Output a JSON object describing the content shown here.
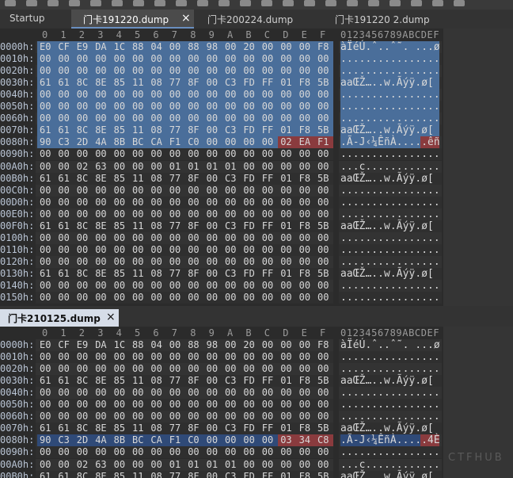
{
  "tabs": [
    "Startup",
    "门卡191220.dump",
    "门卡200224.dump",
    "门卡191220 2.dump"
  ],
  "close": "×",
  "column_header": [
    "0",
    "1",
    "2",
    "3",
    "4",
    "5",
    "6",
    "7",
    "8",
    "9",
    "A",
    "B",
    "C",
    "D",
    "E",
    "F"
  ],
  "ascii_header": "0123456789ABCDEF",
  "top_pane": {
    "rows": [
      {
        "offset": "0000h:",
        "bytes": [
          "E0",
          "CF",
          "E9",
          "DA",
          "1C",
          "88",
          "04",
          "00",
          "88",
          "98",
          "00",
          "20",
          "00",
          "00",
          "00",
          "F8"
        ],
        "ascii": "àÏéÚ.ˆ..ˆ˜. ...ø"
      },
      {
        "offset": "0010h:",
        "bytes": [
          "00",
          "00",
          "00",
          "00",
          "00",
          "00",
          "00",
          "00",
          "00",
          "00",
          "00",
          "00",
          "00",
          "00",
          "00",
          "00"
        ],
        "ascii": "................"
      },
      {
        "offset": "0020h:",
        "bytes": [
          "00",
          "00",
          "00",
          "00",
          "00",
          "00",
          "00",
          "00",
          "00",
          "00",
          "00",
          "00",
          "00",
          "00",
          "00",
          "00"
        ],
        "ascii": "................"
      },
      {
        "offset": "0030h:",
        "bytes": [
          "61",
          "61",
          "8C",
          "8E",
          "85",
          "11",
          "08",
          "77",
          "8F",
          "00",
          "C3",
          "FD",
          "FF",
          "01",
          "F8",
          "5B"
        ],
        "ascii": "aaŒŽ…..w.Ãýÿ.ø["
      },
      {
        "offset": "0040h:",
        "bytes": [
          "00",
          "00",
          "00",
          "00",
          "00",
          "00",
          "00",
          "00",
          "00",
          "00",
          "00",
          "00",
          "00",
          "00",
          "00",
          "00"
        ],
        "ascii": "................"
      },
      {
        "offset": "0050h:",
        "bytes": [
          "00",
          "00",
          "00",
          "00",
          "00",
          "00",
          "00",
          "00",
          "00",
          "00",
          "00",
          "00",
          "00",
          "00",
          "00",
          "00"
        ],
        "ascii": "................"
      },
      {
        "offset": "0060h:",
        "bytes": [
          "00",
          "00",
          "00",
          "00",
          "00",
          "00",
          "00",
          "00",
          "00",
          "00",
          "00",
          "00",
          "00",
          "00",
          "00",
          "00"
        ],
        "ascii": "................"
      },
      {
        "offset": "0070h:",
        "bytes": [
          "61",
          "61",
          "8C",
          "8E",
          "85",
          "11",
          "08",
          "77",
          "8F",
          "00",
          "C3",
          "FD",
          "FF",
          "01",
          "F8",
          "5B"
        ],
        "ascii": "aaŒŽ…..w.Ãýÿ.ø["
      },
      {
        "offset": "0080h:",
        "bytes": [
          "90",
          "C3",
          "2D",
          "4A",
          "8B",
          "BC",
          "CA",
          "F1",
          "C0",
          "00",
          "00",
          "00",
          "00",
          "02",
          "EA",
          "F1"
        ],
        "ascii": ".Ã-J‹¼ÊñÀ.....êñ"
      },
      {
        "offset": "0090h:",
        "bytes": [
          "00",
          "00",
          "00",
          "00",
          "00",
          "00",
          "00",
          "00",
          "00",
          "00",
          "00",
          "00",
          "00",
          "00",
          "00",
          "00"
        ],
        "ascii": "................"
      },
      {
        "offset": "00A0h:",
        "bytes": [
          "00",
          "00",
          "02",
          "63",
          "00",
          "00",
          "00",
          "01",
          "01",
          "01",
          "01",
          "00",
          "00",
          "00",
          "00",
          "00"
        ],
        "ascii": "...c............"
      },
      {
        "offset": "00B0h:",
        "bytes": [
          "61",
          "61",
          "8C",
          "8E",
          "85",
          "11",
          "08",
          "77",
          "8F",
          "00",
          "C3",
          "FD",
          "FF",
          "01",
          "F8",
          "5B"
        ],
        "ascii": "aaŒŽ…..w.Ãýÿ.ø["
      },
      {
        "offset": "00C0h:",
        "bytes": [
          "00",
          "00",
          "00",
          "00",
          "00",
          "00",
          "00",
          "00",
          "00",
          "00",
          "00",
          "00",
          "00",
          "00",
          "00",
          "00"
        ],
        "ascii": "................"
      },
      {
        "offset": "00D0h:",
        "bytes": [
          "00",
          "00",
          "00",
          "00",
          "00",
          "00",
          "00",
          "00",
          "00",
          "00",
          "00",
          "00",
          "00",
          "00",
          "00",
          "00"
        ],
        "ascii": "................"
      },
      {
        "offset": "00E0h:",
        "bytes": [
          "00",
          "00",
          "00",
          "00",
          "00",
          "00",
          "00",
          "00",
          "00",
          "00",
          "00",
          "00",
          "00",
          "00",
          "00",
          "00"
        ],
        "ascii": "................"
      },
      {
        "offset": "00F0h:",
        "bytes": [
          "61",
          "61",
          "8C",
          "8E",
          "85",
          "11",
          "08",
          "77",
          "8F",
          "00",
          "C3",
          "FD",
          "FF",
          "01",
          "F8",
          "5B"
        ],
        "ascii": "aaŒŽ…..w.Ãýÿ.ø["
      },
      {
        "offset": "0100h:",
        "bytes": [
          "00",
          "00",
          "00",
          "00",
          "00",
          "00",
          "00",
          "00",
          "00",
          "00",
          "00",
          "00",
          "00",
          "00",
          "00",
          "00"
        ],
        "ascii": "................"
      },
      {
        "offset": "0110h:",
        "bytes": [
          "00",
          "00",
          "00",
          "00",
          "00",
          "00",
          "00",
          "00",
          "00",
          "00",
          "00",
          "00",
          "00",
          "00",
          "00",
          "00"
        ],
        "ascii": "................"
      },
      {
        "offset": "0120h:",
        "bytes": [
          "00",
          "00",
          "00",
          "00",
          "00",
          "00",
          "00",
          "00",
          "00",
          "00",
          "00",
          "00",
          "00",
          "00",
          "00",
          "00"
        ],
        "ascii": "................"
      },
      {
        "offset": "0130h:",
        "bytes": [
          "61",
          "61",
          "8C",
          "8E",
          "85",
          "11",
          "08",
          "77",
          "8F",
          "00",
          "C3",
          "FD",
          "FF",
          "01",
          "F8",
          "5B"
        ],
        "ascii": "aaŒŽ…..w.Ãýÿ.ø["
      },
      {
        "offset": "0140h:",
        "bytes": [
          "00",
          "00",
          "00",
          "00",
          "00",
          "00",
          "00",
          "00",
          "00",
          "00",
          "00",
          "00",
          "00",
          "00",
          "00",
          "00"
        ],
        "ascii": "................"
      },
      {
        "offset": "0150h:",
        "bytes": [
          "00",
          "00",
          "00",
          "00",
          "00",
          "00",
          "00",
          "00",
          "00",
          "00",
          "00",
          "00",
          "00",
          "00",
          "00",
          "00"
        ],
        "ascii": "................"
      }
    ]
  },
  "bottom_pane": {
    "tab": "门卡210125.dump",
    "rows": [
      {
        "offset": "0000h:",
        "bytes": [
          "E0",
          "CF",
          "E9",
          "DA",
          "1C",
          "88",
          "04",
          "00",
          "88",
          "98",
          "00",
          "20",
          "00",
          "00",
          "00",
          "F8"
        ],
        "ascii": "àÏéÚ.ˆ..ˆ˜. ...ø"
      },
      {
        "offset": "0010h:",
        "bytes": [
          "00",
          "00",
          "00",
          "00",
          "00",
          "00",
          "00",
          "00",
          "00",
          "00",
          "00",
          "00",
          "00",
          "00",
          "00",
          "00"
        ],
        "ascii": "................"
      },
      {
        "offset": "0020h:",
        "bytes": [
          "00",
          "00",
          "00",
          "00",
          "00",
          "00",
          "00",
          "00",
          "00",
          "00",
          "00",
          "00",
          "00",
          "00",
          "00",
          "00"
        ],
        "ascii": "................"
      },
      {
        "offset": "0030h:",
        "bytes": [
          "61",
          "61",
          "8C",
          "8E",
          "85",
          "11",
          "08",
          "77",
          "8F",
          "00",
          "C3",
          "FD",
          "FF",
          "01",
          "F8",
          "5B"
        ],
        "ascii": "aaŒŽ…..w.Ãýÿ.ø["
      },
      {
        "offset": "0040h:",
        "bytes": [
          "00",
          "00",
          "00",
          "00",
          "00",
          "00",
          "00",
          "00",
          "00",
          "00",
          "00",
          "00",
          "00",
          "00",
          "00",
          "00"
        ],
        "ascii": "................"
      },
      {
        "offset": "0050h:",
        "bytes": [
          "00",
          "00",
          "00",
          "00",
          "00",
          "00",
          "00",
          "00",
          "00",
          "00",
          "00",
          "00",
          "00",
          "00",
          "00",
          "00"
        ],
        "ascii": "................"
      },
      {
        "offset": "0060h:",
        "bytes": [
          "00",
          "00",
          "00",
          "00",
          "00",
          "00",
          "00",
          "00",
          "00",
          "00",
          "00",
          "00",
          "00",
          "00",
          "00",
          "00"
        ],
        "ascii": "................"
      },
      {
        "offset": "0070h:",
        "bytes": [
          "61",
          "61",
          "8C",
          "8E",
          "85",
          "11",
          "08",
          "77",
          "8F",
          "00",
          "C3",
          "FD",
          "FF",
          "01",
          "F8",
          "5B"
        ],
        "ascii": "aaŒŽ…..w.Ãýÿ.ø["
      },
      {
        "offset": "0080h:",
        "bytes": [
          "90",
          "C3",
          "2D",
          "4A",
          "8B",
          "BC",
          "CA",
          "F1",
          "C0",
          "00",
          "00",
          "00",
          "00",
          "03",
          "34",
          "C8"
        ],
        "ascii": ".Ã-J‹¼ÊñÀ.....4È"
      },
      {
        "offset": "0090h:",
        "bytes": [
          "00",
          "00",
          "00",
          "00",
          "00",
          "00",
          "00",
          "00",
          "00",
          "00",
          "00",
          "00",
          "00",
          "00",
          "00",
          "00"
        ],
        "ascii": "................"
      },
      {
        "offset": "00A0h:",
        "bytes": [
          "00",
          "00",
          "02",
          "63",
          "00",
          "00",
          "00",
          "01",
          "01",
          "01",
          "01",
          "00",
          "00",
          "00",
          "00",
          "00"
        ],
        "ascii": "...c............"
      },
      {
        "offset": "00B0h:",
        "bytes": [
          "61",
          "61",
          "8C",
          "8E",
          "85",
          "11",
          "08",
          "77",
          "8F",
          "00",
          "C3",
          "FD",
          "FF",
          "01",
          "F8",
          "5B"
        ],
        "ascii": "aaŒŽ…..w.Ãýÿ.ø["
      }
    ]
  },
  "watermark": "CTFHUB"
}
